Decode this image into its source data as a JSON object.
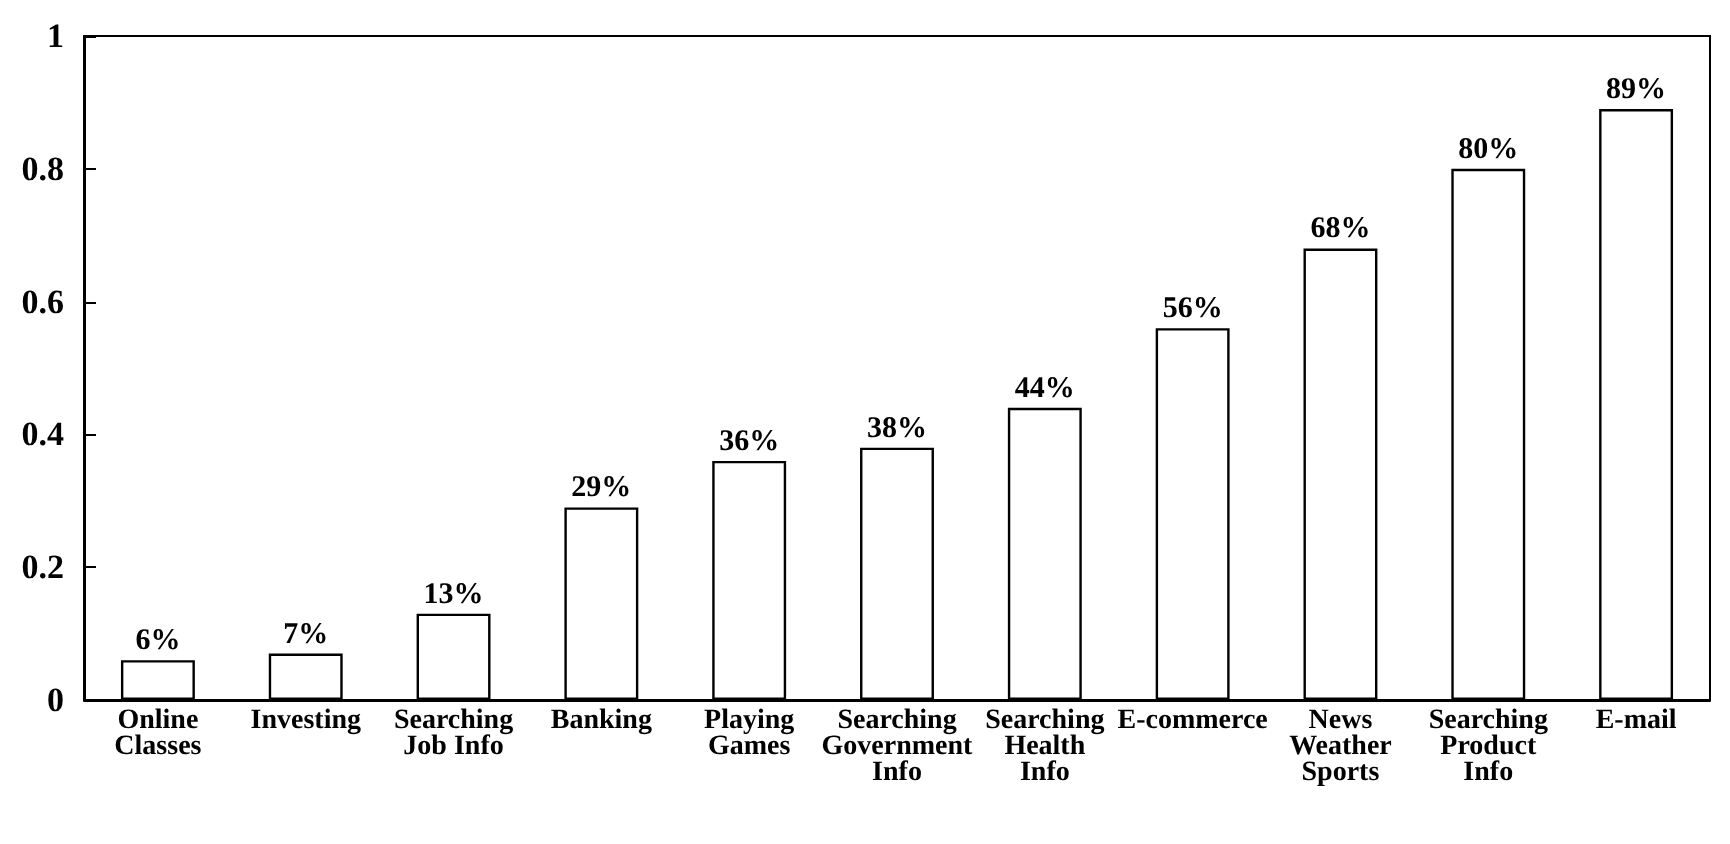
{
  "chart_data": {
    "type": "bar",
    "categories": [
      "Online\nClasses",
      "Investing",
      "Searching\nJob Info",
      "Banking",
      "Playing\nGames",
      "Searching\nGovernment\nInfo",
      "Searching\nHealth\nInfo",
      "E-commerce",
      "News\nWeather\nSports",
      "Searching\nProduct\nInfo",
      "E-mail"
    ],
    "values": [
      0.06,
      0.07,
      0.13,
      0.29,
      0.36,
      0.38,
      0.44,
      0.56,
      0.68,
      0.8,
      0.89
    ],
    "value_labels": [
      "6%",
      "7%",
      "13%",
      "29%",
      "36%",
      "38%",
      "44%",
      "56%",
      "68%",
      "80%",
      "89%"
    ],
    "color": "#ffffff",
    "ylim": [
      0,
      1
    ],
    "yticks": [
      0,
      0.2,
      0.4,
      0.6,
      0.8,
      1
    ],
    "grid": false
  }
}
